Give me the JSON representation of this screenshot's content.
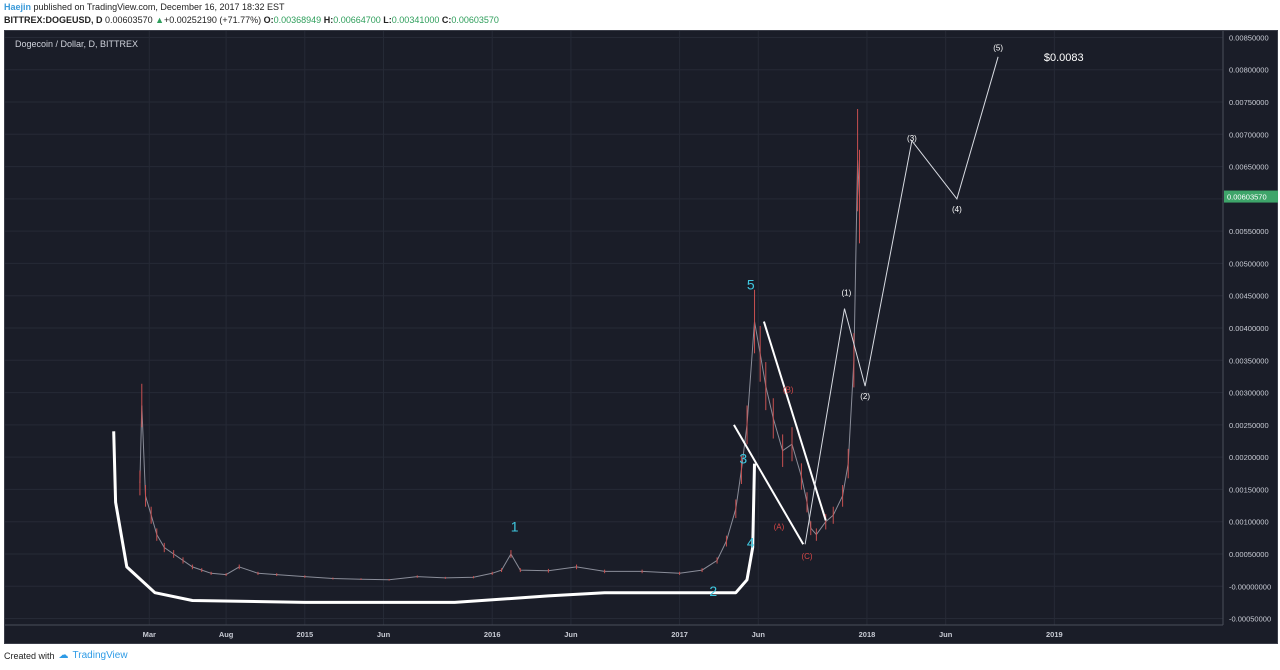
{
  "header": {
    "author": "Haejin",
    "published": " published on TradingView.com, December 16, 2017 18:32 EST",
    "symbol": "BITTREX:DOGEUSD, D",
    "price": "0.00603570",
    "change": "+0.00252190 (+71.77%)",
    "o_label": "O:",
    "o_value": "0.00368949",
    "h_label": "H:",
    "h_value": "0.00664700",
    "l_label": "L:",
    "l_value": "0.00341000",
    "c_label": "C:",
    "c_value": "0.00603570"
  },
  "footer": {
    "created_with": "Created with",
    "brand": "TradingView"
  },
  "chart_data": {
    "type": "line",
    "title": "Dogecoin / Dollar, D, BITTREX",
    "ylim": [
      -0.0006,
      0.0086
    ],
    "y_ticks": [
      {
        "v": 0.0085,
        "label": "0.00850000"
      },
      {
        "v": 0.008,
        "label": "0.00800000"
      },
      {
        "v": 0.0075,
        "label": "0.00750000"
      },
      {
        "v": 0.007,
        "label": "0.00700000"
      },
      {
        "v": 0.0065,
        "label": "0.00650000"
      },
      {
        "v": 0.006,
        "label": "0.00600000"
      },
      {
        "v": 0.0055,
        "label": "0.00550000"
      },
      {
        "v": 0.005,
        "label": "0.00500000"
      },
      {
        "v": 0.0045,
        "label": "0.00450000"
      },
      {
        "v": 0.004,
        "label": "0.00400000"
      },
      {
        "v": 0.0035,
        "label": "0.00350000"
      },
      {
        "v": 0.003,
        "label": "0.00300000"
      },
      {
        "v": 0.0025,
        "label": "0.00250000"
      },
      {
        "v": 0.002,
        "label": "0.00200000"
      },
      {
        "v": 0.0015,
        "label": "0.00150000"
      },
      {
        "v": 0.001,
        "label": "0.00100000"
      },
      {
        "v": 0.0005,
        "label": "0.00050000"
      },
      {
        "v": 0.0,
        "label": "-0.00000000"
      },
      {
        "v": -0.0005,
        "label": "-0.00050000"
      }
    ],
    "current_price": {
      "v": 0.0060357,
      "label": "0.00603570"
    },
    "x_ticks": [
      {
        "t": 2014.17,
        "label": "Mar"
      },
      {
        "t": 2014.58,
        "label": "Aug"
      },
      {
        "t": 2015.0,
        "label": "2015"
      },
      {
        "t": 2015.42,
        "label": "Jun"
      },
      {
        "t": 2016.0,
        "label": "2016"
      },
      {
        "t": 2016.42,
        "label": "Jun"
      },
      {
        "t": 2017.0,
        "label": "2017"
      },
      {
        "t": 2017.42,
        "label": "Jun"
      },
      {
        "t": 2018.0,
        "label": "2018"
      },
      {
        "t": 2018.42,
        "label": "Jun"
      },
      {
        "t": 2019.0,
        "label": "2019"
      }
    ],
    "xlim": [
      2013.4,
      2019.9
    ],
    "series": [
      {
        "color": "#8a8d99",
        "points": [
          [
            2014.12,
            0.0016
          ],
          [
            2014.13,
            0.0028
          ],
          [
            2014.15,
            0.0014
          ],
          [
            2014.18,
            0.0011
          ],
          [
            2014.21,
            0.0008
          ],
          [
            2014.25,
            0.0006
          ],
          [
            2014.3,
            0.0005
          ],
          [
            2014.35,
            0.0004
          ],
          [
            2014.4,
            0.0003
          ],
          [
            2014.45,
            0.00025
          ],
          [
            2014.5,
            0.0002
          ],
          [
            2014.58,
            0.00018
          ],
          [
            2014.65,
            0.0003
          ],
          [
            2014.75,
            0.0002
          ],
          [
            2014.85,
            0.00018
          ],
          [
            2015.0,
            0.00015
          ],
          [
            2015.15,
            0.00012
          ],
          [
            2015.3,
            0.00011
          ],
          [
            2015.45,
            0.0001
          ],
          [
            2015.6,
            0.00015
          ],
          [
            2015.75,
            0.00013
          ],
          [
            2015.9,
            0.00014
          ],
          [
            2016.0,
            0.0002
          ],
          [
            2016.05,
            0.00025
          ],
          [
            2016.1,
            0.0005
          ],
          [
            2016.15,
            0.00025
          ],
          [
            2016.3,
            0.00024
          ],
          [
            2016.45,
            0.0003
          ],
          [
            2016.6,
            0.00023
          ],
          [
            2016.8,
            0.00023
          ],
          [
            2017.0,
            0.0002
          ],
          [
            2017.12,
            0.00025
          ],
          [
            2017.2,
            0.0004
          ],
          [
            2017.25,
            0.0007
          ],
          [
            2017.3,
            0.0012
          ],
          [
            2017.33,
            0.0018
          ],
          [
            2017.36,
            0.0025
          ],
          [
            2017.4,
            0.0041
          ],
          [
            2017.43,
            0.0036
          ],
          [
            2017.46,
            0.0031
          ],
          [
            2017.5,
            0.0026
          ],
          [
            2017.55,
            0.0021
          ],
          [
            2017.6,
            0.0022
          ],
          [
            2017.65,
            0.0017
          ],
          [
            2017.68,
            0.0013
          ],
          [
            2017.7,
            0.0009
          ],
          [
            2017.73,
            0.0008
          ],
          [
            2017.78,
            0.001
          ],
          [
            2017.82,
            0.0011
          ],
          [
            2017.87,
            0.0014
          ],
          [
            2017.9,
            0.0019
          ],
          [
            2017.93,
            0.0035
          ],
          [
            2017.95,
            0.0066
          ],
          [
            2017.96,
            0.0060357
          ]
        ]
      }
    ],
    "annotations": {
      "wave_labels": [
        {
          "t": 2016.12,
          "v": 0.00085,
          "text": "1",
          "color": "#3fc8e0"
        },
        {
          "t": 2017.18,
          "v": -0.00015,
          "text": "2",
          "color": "#3fc8e0"
        },
        {
          "t": 2017.34,
          "v": 0.0019,
          "text": "3",
          "color": "#3fc8e0"
        },
        {
          "t": 2017.38,
          "v": 0.0006,
          "text": "4",
          "color": "#3fc8e0"
        },
        {
          "t": 2017.38,
          "v": 0.0046,
          "text": "5",
          "color": "#3fc8e0"
        },
        {
          "t": 2017.58,
          "v": 0.003,
          "text": "(B)",
          "color": "#d94848"
        },
        {
          "t": 2017.53,
          "v": 0.00088,
          "text": "(A)",
          "color": "#d94848"
        },
        {
          "t": 2017.68,
          "v": 0.00042,
          "text": "(C)",
          "color": "#d94848"
        },
        {
          "t": 2017.89,
          "v": 0.0045,
          "text": "(1)",
          "color": "#ffffff"
        },
        {
          "t": 2017.99,
          "v": 0.0029,
          "text": "(2)",
          "color": "#ffffff"
        },
        {
          "t": 2018.24,
          "v": 0.0069,
          "text": "(3)",
          "color": "#ffffff"
        },
        {
          "t": 2018.48,
          "v": 0.0058,
          "text": "(4)",
          "color": "#ffffff"
        },
        {
          "t": 2018.7,
          "v": 0.0083,
          "text": "(5)",
          "color": "#ffffff"
        }
      ],
      "target_text": "$0.0083",
      "target_t": 2019.05,
      "target_v": 0.0082
    },
    "projection_path": [
      [
        2017.67,
        0.00065
      ],
      [
        2017.88,
        0.0043
      ],
      [
        2017.99,
        0.0031
      ],
      [
        2018.24,
        0.0069
      ],
      [
        2018.48,
        0.006
      ],
      [
        2018.7,
        0.0082
      ]
    ],
    "wedge_lines": [
      [
        [
          2017.45,
          0.0041
        ],
        [
          2017.78,
          0.00102
        ]
      ],
      [
        [
          2017.29,
          0.0025
        ],
        [
          2017.66,
          0.00065
        ]
      ]
    ],
    "base_curve": [
      [
        2013.98,
        0.0024
      ],
      [
        2013.99,
        0.0013
      ],
      [
        2014.05,
        0.0003
      ],
      [
        2014.2,
        -0.0001
      ],
      [
        2014.4,
        -0.00022
      ],
      [
        2015.0,
        -0.00025
      ],
      [
        2015.8,
        -0.00025
      ],
      [
        2016.3,
        -0.00015
      ],
      [
        2016.6,
        -0.0001
      ],
      [
        2017.3,
        -0.0001
      ],
      [
        2017.36,
        0.0001
      ],
      [
        2017.39,
        0.0006
      ],
      [
        2017.4,
        0.0019
      ]
    ]
  }
}
